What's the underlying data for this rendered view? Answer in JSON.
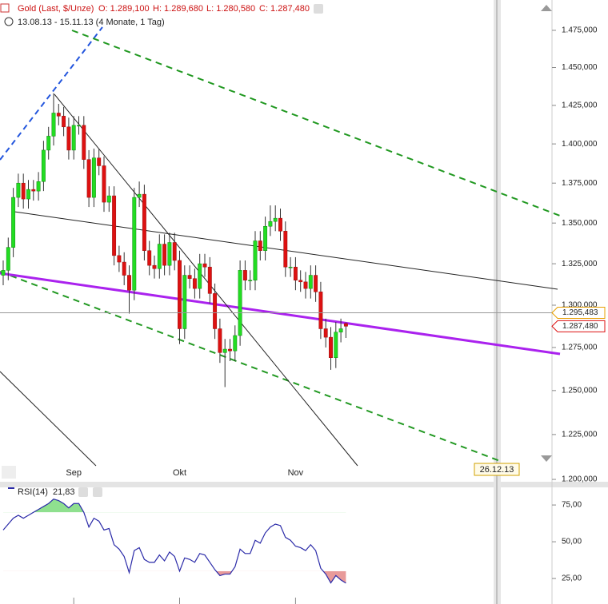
{
  "chart_data": [
    {
      "type": "candlestick",
      "title": "Gold (Last, $/Unze)",
      "ohlc_labels": [
        "O: 1.289,100",
        "H: 1.289,680",
        "L: 1.280,580",
        "C: 1.287,480"
      ],
      "subtitle": "13.08.13 - 15.11.13 (4 Monate, 1 Tag)",
      "categories": [
        null,
        null,
        null,
        null,
        null,
        null,
        null,
        null,
        null,
        null,
        null,
        null,
        null,
        null,
        "Sep",
        null,
        null,
        null,
        null,
        null,
        null,
        null,
        null,
        null,
        null,
        null,
        null,
        null,
        null,
        null,
        null,
        null,
        null,
        null,
        null,
        "Okt",
        null,
        null,
        null,
        null,
        null,
        null,
        null,
        null,
        null,
        null,
        null,
        null,
        null,
        null,
        null,
        null,
        null,
        null,
        null,
        null,
        null,
        null,
        "Nov",
        null,
        null,
        null,
        null,
        null,
        null,
        null,
        null,
        null,
        null
      ],
      "open": [
        1318,
        1321,
        1335,
        1366,
        1375,
        1365,
        1371,
        1370,
        1376,
        1396,
        1405,
        1420,
        1418,
        1411,
        1396,
        1412,
        1412,
        1390,
        1366,
        1391,
        1386,
        1363,
        1367,
        1330,
        1326,
        1318,
        1309,
        1366,
        1368,
        1333,
        1324,
        1322,
        1337,
        1324,
        1338,
        1327,
        1286,
        1318,
        1316,
        1310,
        1325,
        1323,
        1307,
        1286,
        1272,
        1274,
        1273,
        1282,
        1321,
        1315,
        1315,
        1339,
        1333,
        1348,
        1351,
        1353,
        1345,
        1323,
        1323,
        1315,
        1314,
        1310,
        1318,
        1308,
        1286,
        1281,
        1269,
        1284,
        1289.1
      ],
      "high": [
        1327,
        1341,
        1372,
        1381,
        1381,
        1377,
        1377,
        1382,
        1402,
        1411,
        1433,
        1426,
        1424,
        1417,
        1418,
        1418,
        1418,
        1396,
        1397,
        1397,
        1392,
        1373,
        1373,
        1336,
        1332,
        1324,
        1372,
        1376,
        1374,
        1339,
        1330,
        1343,
        1343,
        1344,
        1344,
        1333,
        1324,
        1324,
        1322,
        1331,
        1331,
        1329,
        1313,
        1292,
        1280,
        1280,
        1288,
        1327,
        1327,
        1321,
        1345,
        1345,
        1354,
        1361,
        1361,
        1359,
        1351,
        1329,
        1329,
        1321,
        1320,
        1324,
        1324,
        1314,
        1292,
        1287,
        1290,
        1292,
        1289.68
      ],
      "low": [
        1312,
        1315,
        1329,
        1360,
        1359,
        1359,
        1364,
        1364,
        1370,
        1390,
        1399,
        1412,
        1405,
        1390,
        1390,
        1406,
        1384,
        1360,
        1360,
        1380,
        1357,
        1357,
        1324,
        1320,
        1312,
        1295,
        1303,
        1360,
        1327,
        1318,
        1316,
        1316,
        1318,
        1318,
        1321,
        1277,
        1280,
        1310,
        1304,
        1304,
        1317,
        1301,
        1280,
        1266,
        1252,
        1267,
        1267,
        1276,
        1309,
        1309,
        1309,
        1327,
        1327,
        1342,
        1345,
        1339,
        1317,
        1317,
        1309,
        1308,
        1304,
        1304,
        1302,
        1280,
        1275,
        1262,
        1263,
        1278,
        1280.58
      ],
      "close": [
        1321,
        1335,
        1366,
        1375,
        1365,
        1371,
        1370,
        1376,
        1396,
        1405,
        1420,
        1418,
        1411,
        1396,
        1412,
        1412,
        1390,
        1366,
        1391,
        1386,
        1363,
        1367,
        1330,
        1326,
        1318,
        1309,
        1366,
        1368,
        1333,
        1324,
        1322,
        1337,
        1324,
        1338,
        1327,
        1286,
        1318,
        1316,
        1310,
        1325,
        1323,
        1307,
        1286,
        1272,
        1274,
        1273,
        1282,
        1321,
        1315,
        1315,
        1339,
        1333,
        1348,
        1351,
        1353,
        1345,
        1323,
        1323,
        1315,
        1314,
        1310,
        1318,
        1308,
        1286,
        1281,
        1269,
        1284,
        1286,
        1287.48
      ],
      "up_color": "#22dd22",
      "down_color": "#dd1111",
      "log_scale": true,
      "ylim": [
        1198.7,
        1494.6
      ],
      "yticks": [
        {
          "value": 1200,
          "label": "1.200,000"
        },
        {
          "value": 1225,
          "label": "1.225,000"
        },
        {
          "value": 1250,
          "label": "1.250,000"
        },
        {
          "value": 1275,
          "label": "1.275,000"
        },
        {
          "value": 1300,
          "label": "1.300,000"
        },
        {
          "value": 1325,
          "label": "1.325,000"
        },
        {
          "value": 1350,
          "label": "1.350,000"
        },
        {
          "value": 1375,
          "label": "1.375,000"
        },
        {
          "value": 1400,
          "label": "1.400,000"
        },
        {
          "value": 1425,
          "label": "1.425,000"
        },
        {
          "value": 1450,
          "label": "1.450,000"
        },
        {
          "value": 1475,
          "label": "1.475,000"
        }
      ],
      "price_markers": [
        {
          "value": 1295.483,
          "label": "1.295,483",
          "color": "#e8a000"
        },
        {
          "value": 1287.48,
          "label": "1.287,480",
          "color": "#dd1111"
        }
      ],
      "crosshair_date": "26.12.13"
    },
    {
      "type": "line",
      "name": "RSI(14)",
      "value_label": "21,83",
      "values": [
        58,
        62,
        66,
        68,
        66,
        68,
        70,
        72,
        74,
        76,
        79,
        78,
        76,
        73,
        76,
        76,
        70,
        60,
        66,
        64,
        58,
        59,
        48,
        45,
        40,
        29,
        44,
        46,
        38,
        36,
        36,
        41,
        37,
        43,
        40,
        30,
        39,
        38,
        36,
        42,
        41,
        36,
        31,
        27,
        28,
        28,
        33,
        45,
        42,
        42,
        51,
        49,
        56,
        60,
        62,
        61,
        53,
        51,
        47,
        46,
        44,
        48,
        44,
        32,
        28,
        22,
        27,
        24,
        21.83
      ],
      "color": "#2a2aa8",
      "overbought": 70,
      "oversold": 30,
      "overbought_color": "#8fe08f",
      "oversold_color": "#e89a9a",
      "ylim": [
        8.2,
        87
      ],
      "yticks": [
        {
          "value": 25,
          "label": "25,00"
        },
        {
          "value": 50,
          "label": "50,00"
        },
        {
          "value": 75,
          "label": "75,00"
        }
      ]
    }
  ]
}
